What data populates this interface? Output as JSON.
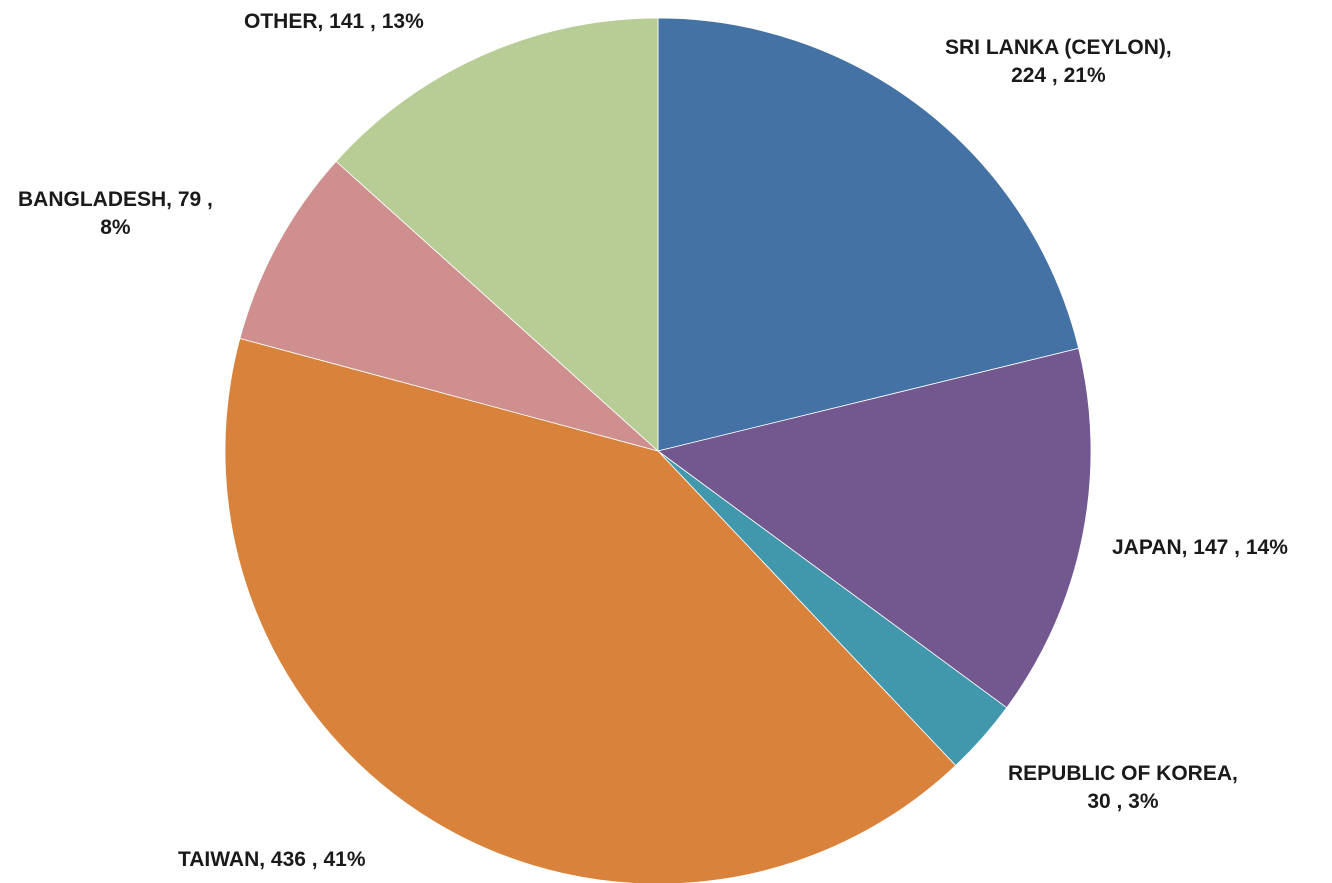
{
  "chart_data": {
    "type": "pie",
    "start_angle_deg": 0,
    "direction": "clockwise",
    "slices": [
      {
        "name": "SRI LANKA (CEYLON)",
        "value": 224,
        "percent": "21%",
        "color": "#4472a4",
        "label_lines": [
          "SRI LANKA (CEYLON),",
          "224 , 21%"
        ]
      },
      {
        "name": "JAPAN",
        "value": 147,
        "percent": "14%",
        "color": "#72588f",
        "label_lines": [
          "JAPAN,  147 , 14%"
        ]
      },
      {
        "name": "REPUBLIC OF KOREA",
        "value": 30,
        "percent": "3%",
        "color": "#4198ad",
        "label_lines": [
          "REPUBLIC OF KOREA,",
          "30 , 3%"
        ]
      },
      {
        "name": "TAIWAN",
        "value": 436,
        "percent": "41%",
        "color": "#d9823b",
        "label_lines": [
          "TAIWAN,  436 , 41%"
        ]
      },
      {
        "name": "BANGLADESH",
        "value": 79,
        "percent": "8%",
        "color": "#cf8f8f",
        "label_lines": [
          "BANGLADESH,  79 ,",
          "8%"
        ]
      },
      {
        "name": "OTHER",
        "value": 141,
        "percent": "13%",
        "color": "#b8cd95",
        "label_lines": [
          "OTHER,  141 , 13%"
        ]
      }
    ]
  }
}
